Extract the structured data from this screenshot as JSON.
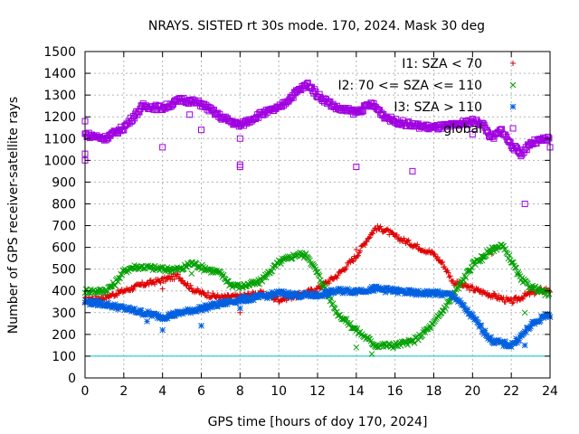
{
  "chart_data": {
    "type": "scatter",
    "title": "NRAYS. SISTED rt 30s mode. 170, 2024. Mask 30 deg",
    "xlabel": "GPS time [hours of doy 170, 2024]",
    "ylabel": "Number of GPS receiver-satellite rays",
    "xlim": [
      0,
      24
    ],
    "ylim": [
      0,
      1500
    ],
    "xticks": [
      0,
      2,
      4,
      6,
      8,
      10,
      12,
      14,
      16,
      18,
      20,
      22,
      24
    ],
    "yticks": [
      0,
      100,
      200,
      300,
      400,
      500,
      600,
      700,
      800,
      900,
      1000,
      1100,
      1200,
      1300,
      1400,
      1500
    ],
    "grid": true,
    "legend_position": "top-right",
    "reference_line": {
      "y": 100,
      "color": "#00c8c8"
    },
    "series": [
      {
        "name": "I1: SZA < 70",
        "marker": "+",
        "color": "#e00000",
        "curve": [
          [
            0,
            360
          ],
          [
            1,
            370
          ],
          [
            2,
            400
          ],
          [
            3,
            430
          ],
          [
            4,
            450
          ],
          [
            4.8,
            470
          ],
          [
            5.5,
            410
          ],
          [
            6,
            390
          ],
          [
            7,
            370
          ],
          [
            8,
            375
          ],
          [
            9,
            390
          ],
          [
            10,
            360
          ],
          [
            11,
            380
          ],
          [
            12,
            410
          ],
          [
            13,
            470
          ],
          [
            14,
            560
          ],
          [
            14.5,
            630
          ],
          [
            15,
            690
          ],
          [
            15.5,
            680
          ],
          [
            16,
            650
          ],
          [
            17,
            610
          ],
          [
            18,
            570
          ],
          [
            18.5,
            520
          ],
          [
            19,
            440
          ],
          [
            20,
            410
          ],
          [
            21,
            380
          ],
          [
            22,
            350
          ],
          [
            23,
            390
          ],
          [
            24,
            410
          ]
        ],
        "outliers": [
          [
            0,
            340
          ],
          [
            4,
            410
          ],
          [
            8,
            300
          ],
          [
            14,
            590
          ],
          [
            21,
            570
          ],
          [
            24,
            395
          ]
        ]
      },
      {
        "name": "I2: 70 <= SZA <= 110",
        "marker": "x",
        "color": "#00a000",
        "curve": [
          [
            0,
            400
          ],
          [
            1,
            400
          ],
          [
            1.5,
            430
          ],
          [
            2,
            490
          ],
          [
            2.5,
            510
          ],
          [
            3,
            510
          ],
          [
            4,
            500
          ],
          [
            5,
            500
          ],
          [
            5.5,
            530
          ],
          [
            6,
            510
          ],
          [
            7,
            480
          ],
          [
            7.5,
            430
          ],
          [
            8,
            420
          ],
          [
            9,
            440
          ],
          [
            10,
            530
          ],
          [
            11,
            570
          ],
          [
            11.5,
            560
          ],
          [
            12,
            480
          ],
          [
            13,
            300
          ],
          [
            14,
            220
          ],
          [
            15,
            150
          ],
          [
            16,
            150
          ],
          [
            17,
            170
          ],
          [
            18,
            250
          ],
          [
            19,
            380
          ],
          [
            20,
            520
          ],
          [
            21,
            590
          ],
          [
            21.5,
            610
          ],
          [
            22,
            540
          ],
          [
            22.5,
            450
          ],
          [
            23,
            420
          ],
          [
            24,
            380
          ]
        ],
        "outliers": [
          [
            14,
            140
          ],
          [
            14.8,
            110
          ],
          [
            5.5,
            480
          ],
          [
            20.5,
            540
          ],
          [
            22.7,
            300
          ]
        ]
      },
      {
        "name": "I3: SZA > 110",
        "marker": "*",
        "color": "#0060e0",
        "curve": [
          [
            0,
            350
          ],
          [
            1,
            340
          ],
          [
            2,
            320
          ],
          [
            3,
            300
          ],
          [
            4,
            280
          ],
          [
            5,
            300
          ],
          [
            6,
            320
          ],
          [
            7,
            340
          ],
          [
            8,
            360
          ],
          [
            9,
            370
          ],
          [
            10,
            390
          ],
          [
            11,
            380
          ],
          [
            12,
            380
          ],
          [
            13,
            400
          ],
          [
            14,
            400
          ],
          [
            15,
            410
          ],
          [
            16,
            400
          ],
          [
            17,
            390
          ],
          [
            18,
            390
          ],
          [
            19,
            380
          ],
          [
            20,
            280
          ],
          [
            21,
            170
          ],
          [
            22,
            150
          ],
          [
            22.5,
            190
          ],
          [
            23,
            240
          ],
          [
            24,
            300
          ]
        ],
        "outliers": [
          [
            3.2,
            260
          ],
          [
            4,
            220
          ],
          [
            6,
            240
          ],
          [
            8,
            320
          ],
          [
            22.7,
            150
          ],
          [
            24,
            280
          ]
        ]
      },
      {
        "name": "global",
        "marker": "square",
        "color": "#a000e0",
        "curve": [
          [
            0,
            1120
          ],
          [
            1,
            1100
          ],
          [
            2,
            1150
          ],
          [
            3,
            1250
          ],
          [
            4,
            1240
          ],
          [
            5,
            1280
          ],
          [
            6,
            1260
          ],
          [
            7,
            1200
          ],
          [
            8,
            1160
          ],
          [
            9,
            1210
          ],
          [
            10,
            1240
          ],
          [
            11,
            1320
          ],
          [
            11.5,
            1350
          ],
          [
            12,
            1300
          ],
          [
            13,
            1240
          ],
          [
            14,
            1220
          ],
          [
            14.8,
            1260
          ],
          [
            15.5,
            1200
          ],
          [
            16,
            1180
          ],
          [
            17,
            1160
          ],
          [
            18,
            1150
          ],
          [
            19,
            1160
          ],
          [
            20,
            1180
          ],
          [
            20.5,
            1170
          ],
          [
            21,
            1100
          ],
          [
            21.5,
            1140
          ],
          [
            22,
            1070
          ],
          [
            22.5,
            1030
          ],
          [
            23,
            1080
          ],
          [
            24,
            1100
          ]
        ],
        "outliers": [
          [
            0,
            1180
          ],
          [
            0,
            1030
          ],
          [
            0,
            1000
          ],
          [
            4,
            1060
          ],
          [
            5.4,
            1210
          ],
          [
            6,
            1140
          ],
          [
            8,
            980
          ],
          [
            8,
            970
          ],
          [
            8,
            1100
          ],
          [
            14,
            970
          ],
          [
            16.9,
            950
          ],
          [
            20,
            1120
          ],
          [
            22.7,
            800
          ],
          [
            24,
            1060
          ]
        ]
      }
    ]
  }
}
